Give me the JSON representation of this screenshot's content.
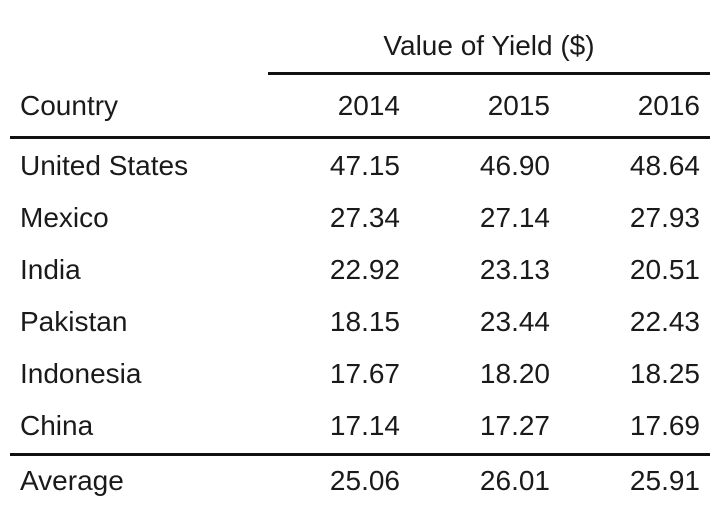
{
  "chart_data": {
    "type": "table",
    "spanner_label": "Value of Yield ($)",
    "columns": [
      "Country",
      "2014",
      "2015",
      "2016"
    ],
    "rows": [
      [
        "United States",
        "47.15",
        "46.90",
        "48.64"
      ],
      [
        "Mexico",
        "27.34",
        "27.14",
        "27.93"
      ],
      [
        "India",
        "22.92",
        "23.13",
        "20.51"
      ],
      [
        "Pakistan",
        "18.15",
        "23.44",
        "22.43"
      ],
      [
        "Indonesia",
        "17.67",
        "18.20",
        "18.25"
      ],
      [
        "China",
        "17.14",
        "17.27",
        "17.69"
      ]
    ],
    "summary_row": [
      "Average",
      "25.06",
      "26.01",
      "25.91"
    ]
  }
}
